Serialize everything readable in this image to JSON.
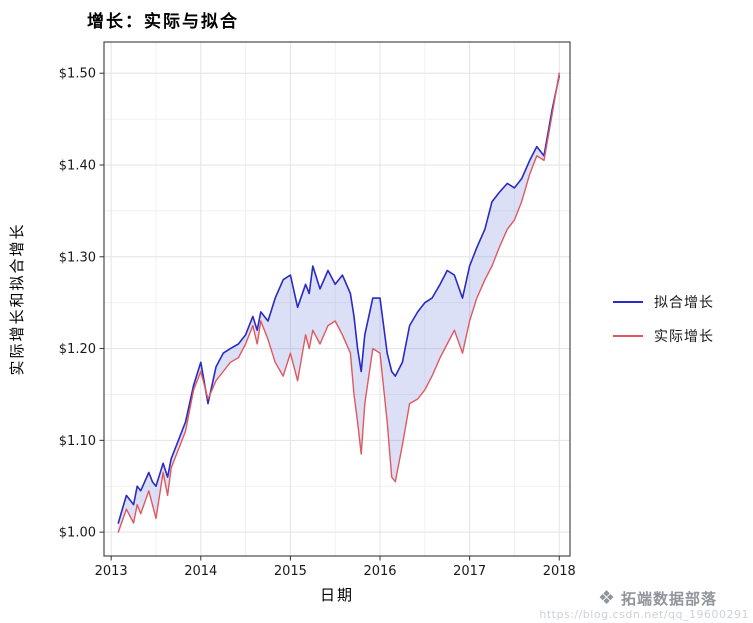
{
  "title": "增长：实际与拟合",
  "axes": {
    "x_label": "日期",
    "y_label": "实际增长和拟合增长"
  },
  "legend": {
    "items": [
      {
        "label": "拟合增长",
        "color": "#2A2AC4"
      },
      {
        "label": "实际增长",
        "color": "#E0585E"
      }
    ]
  },
  "watermark": {
    "logo": "diamond-logo",
    "brand": "拓端数据部落",
    "url": "https://blog.csdn.net/qq_19600291"
  },
  "colors": {
    "ribbon_fill": "rgba(90,112,220,0.22)",
    "grid_major": "#e3e3e3",
    "grid_minor": "#f1f1f1",
    "panel_border": "#4a4a4a",
    "tick": "#333333"
  },
  "chart_data": {
    "type": "line",
    "title": "增长：实际与拟合",
    "xlabel": "日期",
    "ylabel": "实际增长和拟合增长",
    "legend_position": "right",
    "grid": true,
    "ribbon_between_series": true,
    "xlim": [
      2012.92,
      2018.12
    ],
    "ylim": [
      0.974,
      1.534
    ],
    "x_ticks": {
      "values": [
        2013,
        2014,
        2015,
        2016,
        2017,
        2018
      ],
      "labels": [
        "2013",
        "2014",
        "2015",
        "2016",
        "2017",
        "2018"
      ]
    },
    "y_ticks": {
      "values": [
        1.0,
        1.1,
        1.2,
        1.3,
        1.4,
        1.5
      ],
      "labels": [
        "$1.00",
        "$1.10",
        "$1.20",
        "$1.30",
        "$1.40",
        "$1.50"
      ]
    },
    "x_minor": [
      2013.5,
      2014.5,
      2015.5,
      2016.5,
      2017.5
    ],
    "y_minor": [
      1.05,
      1.15,
      1.25,
      1.35,
      1.45
    ],
    "x": [
      2013.08,
      2013.17,
      2013.25,
      2013.29,
      2013.33,
      2013.42,
      2013.46,
      2013.5,
      2013.58,
      2013.63,
      2013.67,
      2013.75,
      2013.83,
      2013.92,
      2014.0,
      2014.08,
      2014.17,
      2014.25,
      2014.33,
      2014.42,
      2014.5,
      2014.58,
      2014.63,
      2014.67,
      2014.75,
      2014.83,
      2014.92,
      2015.0,
      2015.08,
      2015.17,
      2015.21,
      2015.25,
      2015.33,
      2015.42,
      2015.5,
      2015.58,
      2015.67,
      2015.71,
      2015.75,
      2015.79,
      2015.83,
      2015.92,
      2016.0,
      2016.08,
      2016.13,
      2016.17,
      2016.25,
      2016.33,
      2016.42,
      2016.5,
      2016.58,
      2016.67,
      2016.75,
      2016.83,
      2016.92,
      2017.0,
      2017.08,
      2017.17,
      2017.25,
      2017.33,
      2017.42,
      2017.5,
      2017.58,
      2017.67,
      2017.75,
      2017.83,
      2017.92,
      2018.0
    ],
    "series": [
      {
        "name": "拟合增长",
        "color": "#2A2AC4",
        "values": [
          1.01,
          1.04,
          1.03,
          1.05,
          1.045,
          1.065,
          1.055,
          1.05,
          1.075,
          1.06,
          1.08,
          1.1,
          1.12,
          1.16,
          1.185,
          1.14,
          1.18,
          1.195,
          1.2,
          1.205,
          1.215,
          1.235,
          1.22,
          1.24,
          1.23,
          1.255,
          1.275,
          1.28,
          1.245,
          1.27,
          1.26,
          1.29,
          1.265,
          1.285,
          1.27,
          1.28,
          1.26,
          1.235,
          1.2,
          1.175,
          1.215,
          1.255,
          1.255,
          1.195,
          1.175,
          1.17,
          1.185,
          1.225,
          1.24,
          1.25,
          1.255,
          1.27,
          1.285,
          1.28,
          1.255,
          1.29,
          1.31,
          1.33,
          1.36,
          1.37,
          1.38,
          1.375,
          1.385,
          1.405,
          1.42,
          1.41,
          1.46,
          1.497
        ]
      },
      {
        "name": "实际增长",
        "color": "#E0585E",
        "values": [
          1.0,
          1.025,
          1.01,
          1.03,
          1.02,
          1.045,
          1.03,
          1.015,
          1.065,
          1.04,
          1.07,
          1.09,
          1.11,
          1.155,
          1.175,
          1.145,
          1.165,
          1.175,
          1.185,
          1.19,
          1.205,
          1.225,
          1.205,
          1.23,
          1.21,
          1.185,
          1.17,
          1.195,
          1.165,
          1.215,
          1.2,
          1.22,
          1.205,
          1.225,
          1.23,
          1.215,
          1.195,
          1.15,
          1.12,
          1.085,
          1.14,
          1.2,
          1.195,
          1.12,
          1.06,
          1.055,
          1.095,
          1.14,
          1.145,
          1.155,
          1.17,
          1.19,
          1.205,
          1.22,
          1.195,
          1.23,
          1.255,
          1.275,
          1.29,
          1.31,
          1.33,
          1.34,
          1.36,
          1.39,
          1.41,
          1.405,
          1.455,
          1.5
        ]
      }
    ]
  }
}
